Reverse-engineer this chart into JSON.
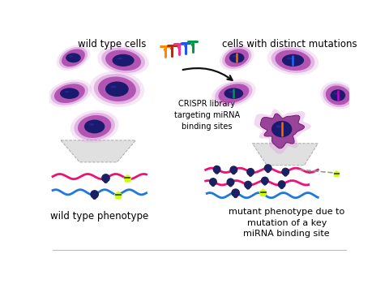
{
  "bg_color": "#ffffff",
  "cell_outer_color": "#dda0dd",
  "cell_mid_color": "#cc77cc",
  "cell_inner_color": "#aa44aa",
  "nucleus_color": "#1a1a6e",
  "nucleus_hi_color": "#3333aa",
  "mutant_cell_color": "#994499",
  "mutant_cell_edge": "#772277",
  "label_wt_cells": "wild type cells",
  "label_mut_cells": "cells with distinct mutations",
  "label_crispr": "CRISPR library\ntargeting miRNA\nbinding sites",
  "label_wt_pheno": "wild type phenotype",
  "label_mut_pheno": "mutant phenotype due to\nmutation of a key\nmiRNA binding site",
  "pink_line_color": "#ee1177",
  "blue_line_color": "#2277dd",
  "dark_node_color": "#1a2060",
  "reporter_color": "#ccff00",
  "reporter_line": "#333333",
  "trap_fill": "#e0e0e0",
  "trap_edge": "#aaaaaa",
  "guide_colors": [
    "#ff8800",
    "#cc2200",
    "#ee3399",
    "#2255ee",
    "#009944"
  ],
  "bar_colors": [
    "#ff6600",
    "#2266ff",
    "#009944",
    "#cc00cc"
  ],
  "arrow_color": "#111111",
  "dashed_line_color": "#999999"
}
